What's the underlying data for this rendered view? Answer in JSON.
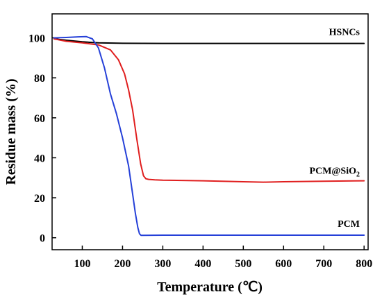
{
  "chart_data": {
    "type": "line",
    "title": "",
    "xlabel": "Temperature (℃)",
    "ylabel": "Residue mass (%)",
    "xlim": [
      25,
      810
    ],
    "ylim": [
      -6,
      112
    ],
    "xticks": [
      100,
      200,
      300,
      400,
      500,
      600,
      700,
      800
    ],
    "yticks": [
      0,
      20,
      40,
      60,
      80,
      100
    ],
    "grid": false,
    "legend": "none",
    "series": [
      {
        "name": "HSNCs",
        "label_text": "HSNCs",
        "color": "#000000",
        "x": [
          30,
          60,
          100,
          140,
          200,
          300,
          400,
          500,
          600,
          700,
          800
        ],
        "y": [
          99.5,
          98.8,
          98.0,
          97.5,
          97.3,
          97.2,
          97.2,
          97.2,
          97.2,
          97.2,
          97.2
        ]
      },
      {
        "name": "PCM@SiO2",
        "label_text": "PCM@SiO",
        "label_subscript": "2",
        "color": "#e01e1e",
        "x": [
          30,
          60,
          100,
          140,
          170,
          190,
          205,
          215,
          225,
          235,
          245,
          252,
          258,
          265,
          280,
          300,
          400,
          500,
          550,
          600,
          700,
          800
        ],
        "y": [
          99.5,
          98.3,
          97.5,
          96.5,
          94,
          89,
          82,
          74,
          64,
          50,
          37,
          31,
          29.5,
          29.2,
          29.0,
          28.8,
          28.5,
          28.0,
          27.8,
          28.0,
          28.3,
          28.5
        ]
      },
      {
        "name": "PCM",
        "label_text": "PCM",
        "color": "#2540d8",
        "x": [
          30,
          60,
          90,
          110,
          125,
          140,
          155,
          170,
          185,
          200,
          215,
          225,
          232,
          238,
          242,
          246,
          250,
          300,
          400,
          500,
          600,
          700,
          800
        ],
        "y": [
          100,
          100.2,
          100.5,
          100.6,
          99.5,
          95,
          85,
          72,
          62,
          50,
          36,
          22,
          12,
          5,
          2,
          1.2,
          1.2,
          1.3,
          1.3,
          1.3,
          1.3,
          1.3,
          1.3
        ]
      }
    ]
  }
}
